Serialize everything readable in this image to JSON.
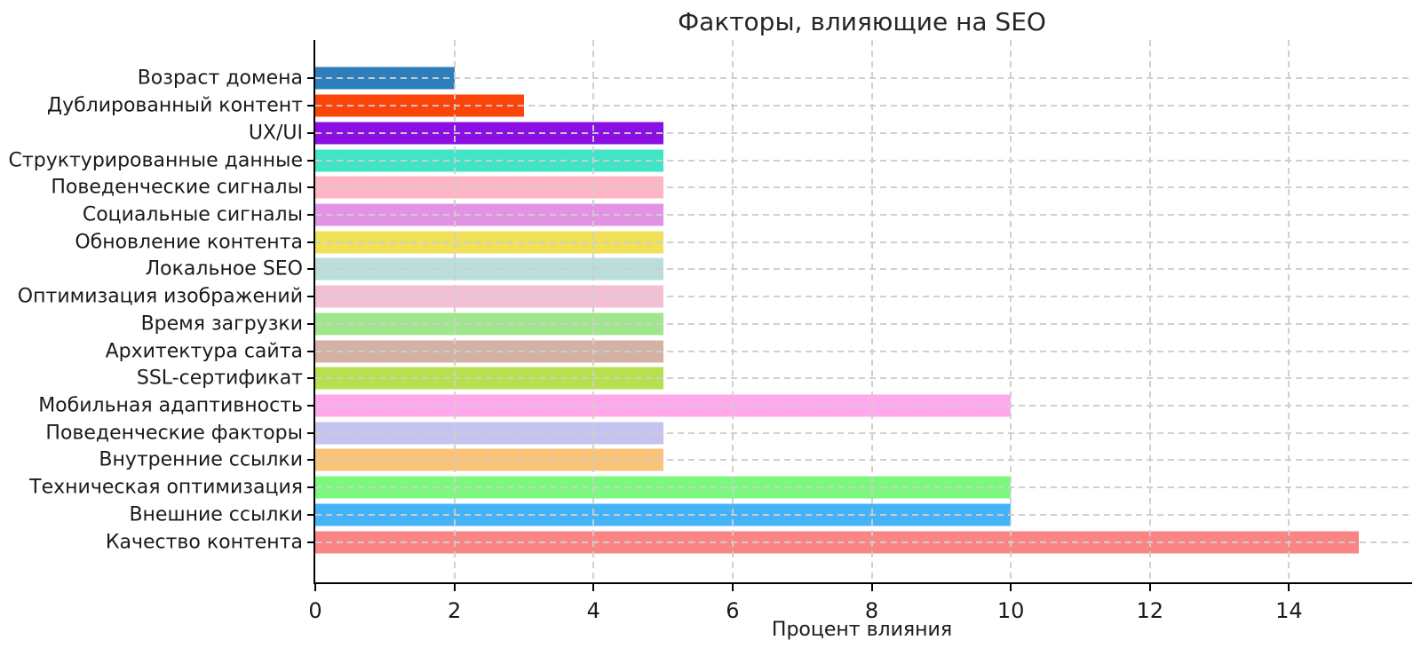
{
  "chart_data": {
    "type": "bar",
    "orientation": "horizontal",
    "title": "Факторы, влияющие на SEO",
    "xlabel": "Процент влияния",
    "ylabel": "",
    "categories": [
      "Возраст домена",
      "Дублированный контент",
      "UX/UI",
      "Структурированные данные",
      "Поведенческие сигналы",
      "Социальные сигналы",
      "Обновление контента",
      "Локальное SEO",
      "Оптимизация изображений",
      "Время загрузки",
      "Архитектура сайта",
      "SSL-сертификат",
      "Мобильная адаптивность",
      "Поведенческие факторы",
      "Внутренние ссылки",
      "Техническая оптимизация",
      "Внешние ссылки",
      "Качество контента"
    ],
    "values": [
      2,
      3,
      5,
      5,
      5,
      5,
      5,
      5,
      5,
      5,
      5,
      5,
      10,
      5,
      5,
      10,
      10,
      15
    ],
    "bar_colors": [
      "#2E7EBB",
      "#FB4508",
      "#8B0EE3",
      "#42E4C6",
      "#FFB6C4",
      "#E292E2",
      "#F1E05A",
      "#BADEDA",
      "#F3BFD5",
      "#A0E68C",
      "#D3B1A4",
      "#B6E04E",
      "#FFA9EC",
      "#C5C4F0",
      "#FBC378",
      "#7DF87E",
      "#45B3F7",
      "#F98585"
    ],
    "x_ticks": [
      0,
      2,
      4,
      6,
      8,
      10,
      12,
      14
    ],
    "xlim": [
      0,
      15.77
    ],
    "grid": "dashed",
    "grid_color": "#cecece",
    "axis_color": "#000000",
    "background": "#ffffff",
    "legend": "none"
  }
}
